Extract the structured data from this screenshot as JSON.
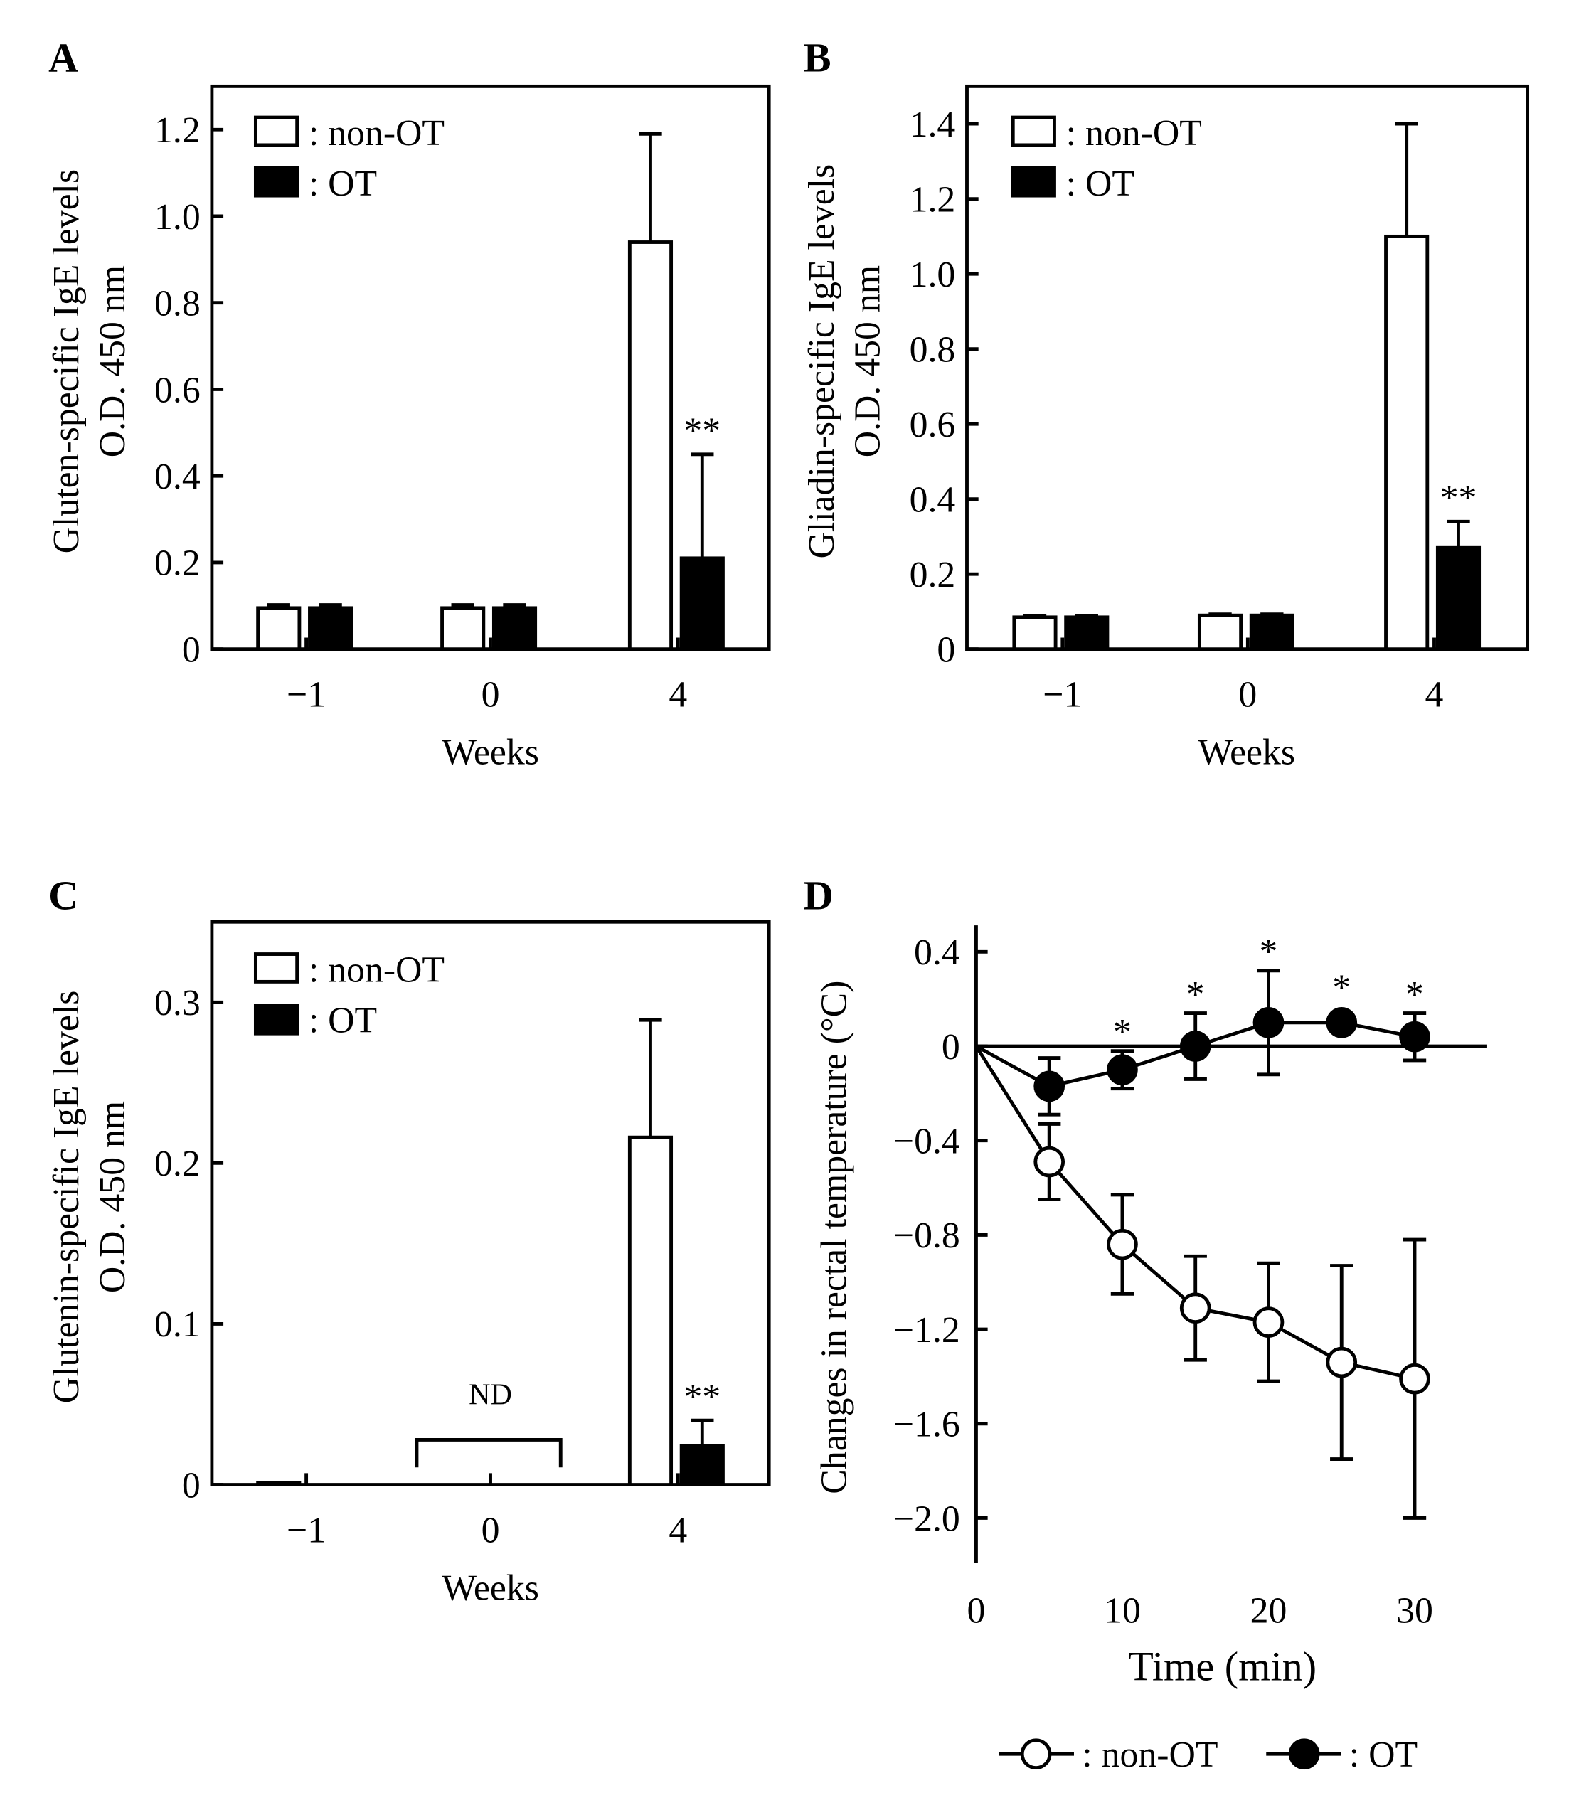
{
  "legend": {
    "non_ot": ": non-OT",
    "ot": ": OT"
  },
  "chart_data": [
    {
      "panel": "A",
      "type": "bar",
      "ylabel_line1": "Gluten-specific IgE levels",
      "ylabel_line2": "O.D. 450 nm",
      "xlabel": "Weeks",
      "categories": [
        "−1",
        "0",
        "4"
      ],
      "ylim": [
        0,
        1.3
      ],
      "yticks": [
        0,
        0.2,
        0.4,
        0.6,
        0.8,
        1.0,
        1.2
      ],
      "ytick_labels": [
        "0",
        "0.2",
        "0.4",
        "0.6",
        "0.8",
        "1.0",
        "1.2"
      ],
      "legend_position": "top-left",
      "series": [
        {
          "name": "non-OT",
          "fill": "#ffffff",
          "values": [
            0.095,
            0.095,
            0.94
          ],
          "errors": [
            0.007,
            0.007,
            0.25
          ]
        },
        {
          "name": "OT",
          "fill": "#000000",
          "values": [
            0.095,
            0.095,
            0.21
          ],
          "errors": [
            0.007,
            0.007,
            0.24
          ]
        }
      ],
      "annotations": [
        {
          "category": "4",
          "series": "OT",
          "text": "**"
        }
      ]
    },
    {
      "panel": "B",
      "type": "bar",
      "ylabel_line1": "Gliadin-specific IgE levels",
      "ylabel_line2": "O.D. 450 nm",
      "xlabel": "Weeks",
      "categories": [
        "−1",
        "0",
        "4"
      ],
      "ylim": [
        0,
        1.5
      ],
      "yticks": [
        0,
        0.2,
        0.4,
        0.6,
        0.8,
        1.0,
        1.2,
        1.4
      ],
      "ytick_labels": [
        "0",
        "0.2",
        "0.4",
        "0.6",
        "0.8",
        "1.0",
        "1.2",
        "1.4"
      ],
      "legend_position": "top-left",
      "series": [
        {
          "name": "non-OT",
          "fill": "#ffffff",
          "values": [
            0.085,
            0.09,
            1.1
          ],
          "errors": [
            0.003,
            0.003,
            0.3
          ]
        },
        {
          "name": "OT",
          "fill": "#000000",
          "values": [
            0.085,
            0.09,
            0.27
          ],
          "errors": [
            0.003,
            0.003,
            0.07
          ]
        }
      ],
      "annotations": [
        {
          "category": "4",
          "series": "OT",
          "text": "**"
        }
      ]
    },
    {
      "panel": "C",
      "type": "bar",
      "ylabel_line1": "Glutenin-specific IgE levels",
      "ylabel_line2": "O.D. 450 nm",
      "xlabel": "Weeks",
      "categories": [
        "−1",
        "0",
        "4"
      ],
      "ylim": [
        0,
        0.35
      ],
      "yticks": [
        0,
        0.1,
        0.2,
        0.3
      ],
      "ytick_labels": [
        "0",
        "0.1",
        "0.2",
        "0.3"
      ],
      "legend_position": "top-left",
      "series": [
        {
          "name": "non-OT",
          "fill": "#ffffff",
          "values": [
            0.001,
            0,
            0.216
          ],
          "errors": [
            0,
            0,
            0.073
          ]
        },
        {
          "name": "OT",
          "fill": "#000000",
          "values": [
            0,
            0,
            0.024
          ],
          "errors": [
            0,
            0,
            0.016
          ]
        }
      ],
      "annotations": [
        {
          "category": "4",
          "series": "OT",
          "text": "**"
        },
        {
          "category": "0",
          "text": "ND"
        }
      ]
    },
    {
      "panel": "D",
      "type": "line",
      "ylabel": "Changes in rectal temperature (°C)",
      "xlabel": "Time  (min)",
      "xlim": [
        0,
        35
      ],
      "xticks": [
        0,
        10,
        20,
        30
      ],
      "xtick_labels": [
        "0",
        "10",
        "20",
        "30"
      ],
      "ylim": [
        -2.2,
        0.5
      ],
      "yticks": [
        0.4,
        0,
        -0.4,
        -0.8,
        -1.2,
        -1.6,
        -2.0
      ],
      "ytick_labels": [
        "0.4",
        "0",
        "−0.4",
        "−0.8",
        "−1.2",
        "−1.6",
        "−2.0"
      ],
      "legend_position": "bottom",
      "series": [
        {
          "name": "non-OT",
          "marker": "open-circle",
          "x": [
            0,
            5,
            10,
            15,
            20,
            25,
            30
          ],
          "y": [
            0,
            -0.49,
            -0.84,
            -1.11,
            -1.17,
            -1.34,
            -1.41
          ],
          "errors": [
            0,
            0.16,
            0.21,
            0.22,
            0.25,
            0.41,
            0.59
          ]
        },
        {
          "name": "OT",
          "marker": "filled-circle",
          "x": [
            0,
            5,
            10,
            15,
            20,
            25,
            30
          ],
          "y": [
            0,
            -0.17,
            -0.1,
            0,
            0.1,
            0.1,
            0.04
          ],
          "errors": [
            0,
            0.12,
            0.08,
            0.14,
            0.22,
            0,
            0.1
          ]
        }
      ],
      "annotations": [
        {
          "x": 10,
          "text": "*"
        },
        {
          "x": 15,
          "text": "*"
        },
        {
          "x": 20,
          "text": "*"
        },
        {
          "x": 25,
          "text": "*"
        },
        {
          "x": 30,
          "text": "*"
        }
      ]
    }
  ]
}
